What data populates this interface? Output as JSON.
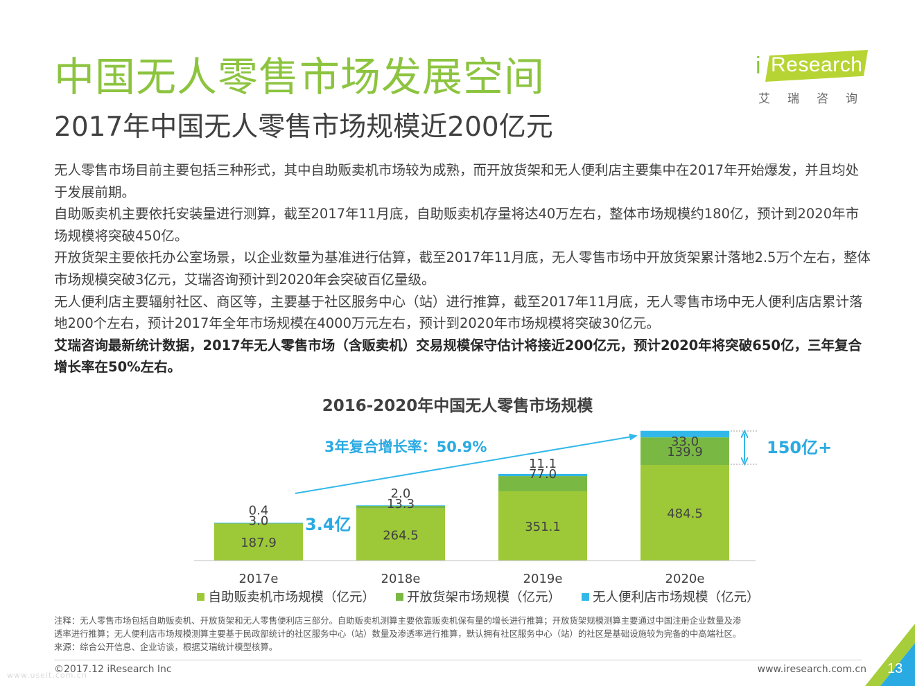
{
  "header": {
    "title": "中国无人零售市场发展空间",
    "subtitle": "2017年中国无人零售市场规模近200亿元"
  },
  "logo": {
    "brand_i": "i",
    "brand_word": "Research",
    "brand_cn": "艾瑞咨询",
    "colors": {
      "band": "#b6d433",
      "i": "#8cc43f"
    }
  },
  "body": {
    "paragraphs": [
      "无人零售市场目前主要包括三种形式，其中自助贩卖机市场较为成熟，而开放货架和无人便利店主要集中在2017年开始爆发，并且均处于发展前期。",
      "自助贩卖机主要依托安装量进行测算，截至2017年11月底，自助贩卖机存量将达40万左右，整体市场规模约180亿，预计到2020年市场规模将突破450亿。",
      "开放货架主要依托办公室场景，以企业数量为基准进行估算，截至2017年11月底，无人零售市场中开放货架累计落地2.5万个左右，整体市场规模突破3亿元，艾瑞咨询预计到2020年会突破百亿量级。",
      "无人便利店主要辐射社区、商区等，主要基于社区服务中心（站）进行推算，截至2017年11月底，无人零售市场中无人便利店店累计落地200个左右，预计2017年全年市场规模在4000万元左右，预计到2020年市场规模将突破30亿元。"
    ],
    "bold_paragraph": "艾瑞咨询最新统计数据，2017年无人零售市场（含贩卖机）交易规模保守估计将接近200亿元，预计2020年将突破650亿，三年复合增长率在50%左右。"
  },
  "chart_data": {
    "type": "bar",
    "stacked": true,
    "title": "2016-2020年中国无人零售市场规模",
    "categories": [
      "2017e",
      "2018e",
      "2019e",
      "2020e"
    ],
    "series": [
      {
        "name": "自助贩卖机市场规模（亿元）",
        "values": [
          187.9,
          264.5,
          351.1,
          484.5
        ],
        "color": "#9dc938"
      },
      {
        "name": "开放货架市场规模（亿元）",
        "values": [
          3.0,
          13.3,
          77.0,
          139.9
        ],
        "color": "#79b943"
      },
      {
        "name": "无人便利店市场规模（亿元）",
        "values": [
          0.4,
          2.0,
          11.1,
          33.0
        ],
        "color": "#32b8e8"
      }
    ],
    "data_labels": [
      [
        "187.9",
        "264.5",
        "351.1",
        "484.5"
      ],
      [
        "3.0",
        "13.3",
        "77.0",
        "139.9"
      ],
      [
        "0.4",
        "2.0",
        "11.1",
        "33.0"
      ]
    ],
    "annotations": {
      "cagr": "3年复合增长率：50.9%",
      "label_2017": "3.4亿",
      "label_2020": "150亿+"
    },
    "annotation_color": "#2aaae2",
    "ylim": [
      0,
      660
    ],
    "grid": false,
    "legend": "bottom"
  },
  "notes": {
    "lines": [
      "注释：无人零售市场包括自助贩卖机、开放货架和无人零售便利店三部分。自助贩卖机测算主要依靠贩卖机保有量的增长进行推算；开放货架规模测算主要通过中国注册企业数量及渗",
      "透率进行推算；无人便利店市场规模测算主要基于民政部统计的社区服务中心（站）数量及渗透率进行推算，默认拥有社区服务中心（站）的社区是基础设施较为完备的中高端社区。",
      "来源：综合公开信息、企业访谈，根据艾瑞统计模型核算。"
    ]
  },
  "footer": {
    "copyright": "©2017.12 iResearch Inc",
    "website": "www.iresearch.com.cn",
    "page_number": "13",
    "watermark": "www.useit.com.cn"
  }
}
